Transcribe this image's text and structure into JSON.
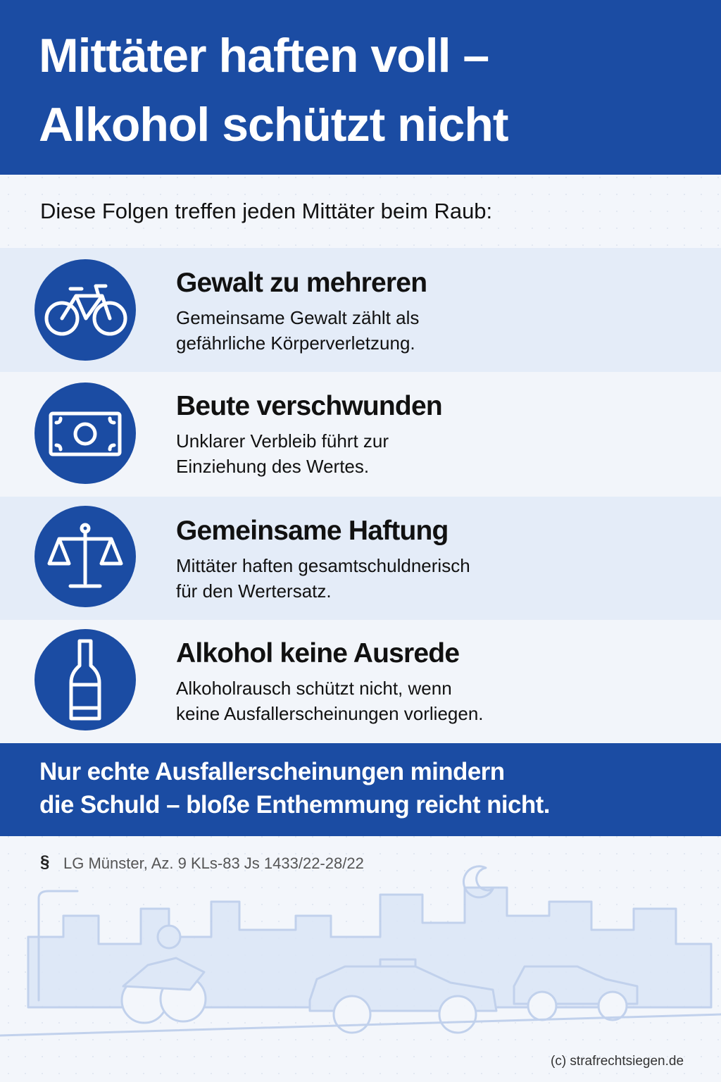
{
  "header": {
    "title_lines": [
      "Mittäter haften voll –",
      "Alkohol schützt nicht"
    ]
  },
  "intro": "Diese Folgen treffen jeden Mittäter beim Raub:",
  "items": [
    {
      "title": "Gewalt zu mehreren",
      "lines": [
        "Gemeinsame Gewalt zählt als",
        "gefährliche Körperverletzung."
      ]
    },
    {
      "title": "Beute verschwunden",
      "lines": [
        "Unklarer Verbleib führt zur",
        "Einziehung des Wertes."
      ]
    },
    {
      "title": "Gemeinsame Haftung",
      "lines": [
        "Mittäter haften gesamtschuldnerisch",
        "für den Wertersatz."
      ]
    },
    {
      "title": "Alkohol keine Ausrede",
      "lines": [
        "Alkoholrausch schützt nicht, wenn",
        "keine Ausfallerscheinungen vorliegen."
      ]
    }
  ],
  "callout": {
    "lines": [
      "Nur echte Ausfallerscheinungen mindern",
      "die Schuld – bloße Enthemmung reicht nicht."
    ]
  },
  "source": {
    "symbol": "§",
    "text": "LG Münster, Az. 9 KLs-83 Js 1433/22-28/22"
  },
  "credit": "(c) strafrechtsiegen.de"
}
